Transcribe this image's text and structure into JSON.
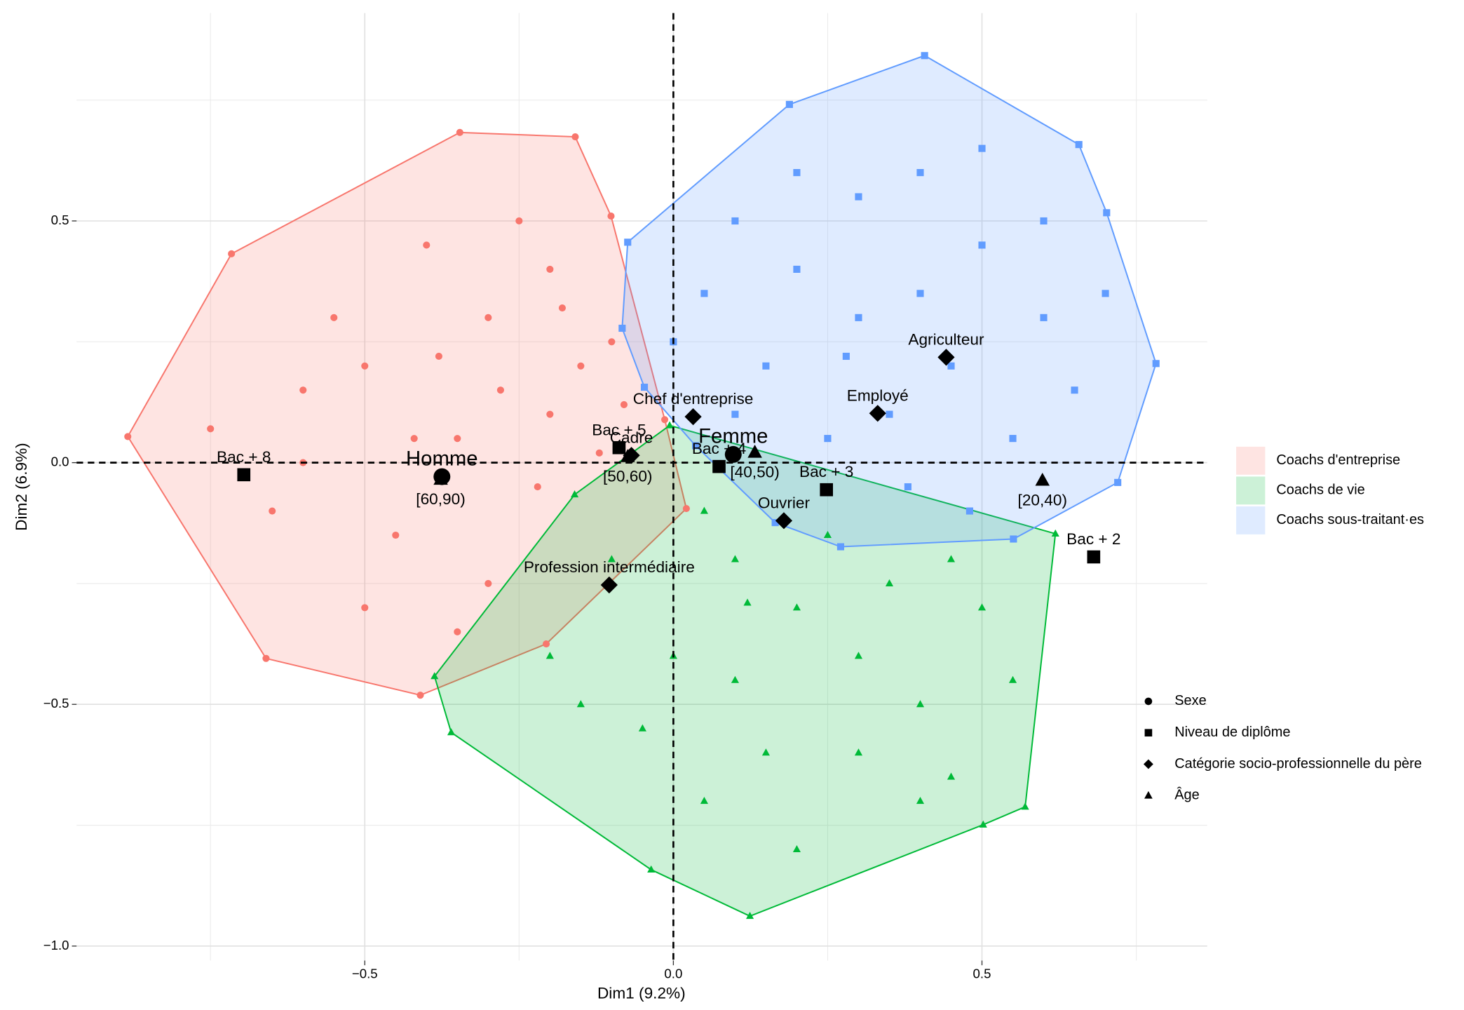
{
  "chart_data": {
    "type": "scatter",
    "xlabel": "Dim1 (9.2%)",
    "ylabel": "Dim2 (6.9%)",
    "xlim": [
      -0.967,
      0.865
    ],
    "ylim": [
      -1.03,
      0.93
    ],
    "xticks": [
      {
        "value": -0.5,
        "label": "−0.5"
      },
      {
        "value": 0,
        "label": "0.0"
      },
      {
        "value": 0.5,
        "label": "0.5"
      }
    ],
    "yticks": [
      {
        "value": -1.0,
        "label": "−1.0"
      },
      {
        "value": -0.5,
        "label": "−0.5"
      },
      {
        "value": 0,
        "label": "0.0"
      },
      {
        "value": 0.5,
        "label": "0.5"
      }
    ],
    "xminor": [
      -0.75,
      -0.25,
      0.25,
      0.75
    ],
    "yminor": [
      -0.75,
      -0.25,
      0.25,
      0.75
    ],
    "grid": true,
    "series": [
      {
        "name": "Coachs d'entreprise",
        "color": "#F8766D",
        "fill": "#FBB4AE",
        "shape": "circle",
        "x": [
          -0.884,
          -0.716,
          -0.346,
          -0.159,
          -0.101,
          -0.014,
          0.021,
          -0.206,
          -0.41,
          -0.66,
          -0.35,
          -0.5,
          -0.3,
          -0.2,
          -0.6,
          -0.45,
          -0.3,
          -0.2,
          -0.4,
          -0.25,
          -0.55,
          -0.65,
          -0.75,
          -0.15,
          -0.1,
          -0.35,
          -0.5,
          -0.28,
          -0.42,
          -0.22,
          -0.12,
          -0.6,
          -0.38,
          -0.18,
          -0.08
        ],
        "y": [
          0.054,
          0.432,
          0.683,
          0.674,
          0.51,
          0.089,
          -0.095,
          -0.375,
          -0.481,
          -0.405,
          0.05,
          0.2,
          0.3,
          0.4,
          0.0,
          -0.15,
          -0.25,
          0.1,
          0.45,
          0.5,
          0.3,
          -0.1,
          0.07,
          0.2,
          0.25,
          -0.35,
          -0.3,
          0.15,
          0.05,
          -0.05,
          0.02,
          0.15,
          0.22,
          0.32,
          0.12
        ]
      },
      {
        "name": "Coachs de vie",
        "color": "#00BA38",
        "fill": "#8FDCA5",
        "shape": "triangle",
        "x": [
          -0.006,
          0.619,
          0.57,
          0.502,
          0.124,
          -0.036,
          -0.36,
          -0.387,
          -0.16,
          0.1,
          0.2,
          0.3,
          0.4,
          0.5,
          0.0,
          -0.1,
          -0.2,
          0.15,
          0.3,
          0.45,
          0.05,
          -0.05,
          0.25,
          0.55,
          0.35,
          -0.15,
          0.1,
          0.2,
          0.4,
          0.12,
          0.05,
          0.45
        ],
        "y": [
          0.077,
          -0.147,
          -0.712,
          -0.749,
          -0.938,
          -0.842,
          -0.558,
          -0.442,
          -0.066,
          -0.2,
          -0.3,
          -0.4,
          -0.5,
          -0.3,
          -0.4,
          -0.2,
          -0.4,
          -0.6,
          -0.6,
          -0.65,
          -0.7,
          -0.55,
          -0.15,
          -0.45,
          -0.25,
          -0.5,
          -0.45,
          -0.8,
          -0.7,
          -0.29,
          -0.1,
          -0.2
        ]
      },
      {
        "name": "Coachs sous-traitant·es",
        "color": "#619CFF",
        "fill": "#B3CFFF",
        "shape": "square",
        "x": [
          -0.074,
          0.188,
          0.407,
          0.657,
          0.702,
          0.782,
          0.72,
          0.551,
          0.271,
          0.165,
          0.036,
          -0.047,
          -0.083,
          0.1,
          0.2,
          0.3,
          0.4,
          0.5,
          0.6,
          0.45,
          0.35,
          0.25,
          0.15,
          0.05,
          0.55,
          0.65,
          0.3,
          0.5,
          0.2,
          0.4,
          0.1,
          0.6,
          0.7,
          0.0,
          0.28,
          0.38,
          0.48
        ],
        "y": [
          0.456,
          0.741,
          0.842,
          0.658,
          0.517,
          0.205,
          -0.041,
          -0.158,
          -0.174,
          -0.124,
          0.035,
          0.156,
          0.278,
          0.5,
          0.4,
          0.3,
          0.6,
          0.45,
          0.3,
          0.2,
          0.1,
          0.05,
          0.2,
          0.35,
          0.05,
          0.15,
          0.55,
          0.65,
          0.6,
          0.35,
          0.1,
          0.5,
          0.35,
          0.25,
          0.22,
          -0.05,
          -0.1
        ]
      }
    ],
    "variables": [
      {
        "name": "Sexe",
        "shape": "circle",
        "labels": [
          "Homme",
          "Femme"
        ],
        "x": [
          -0.375,
          0.097
        ],
        "y": [
          -0.029,
          0.017
        ]
      },
      {
        "name": "Niveau de diplôme",
        "shape": "square",
        "labels": [
          "Bac + 8",
          "Bac + 5",
          "Bac + 4",
          "Bac + 3",
          "Bac + 2"
        ],
        "x": [
          -0.696,
          -0.088,
          0.074,
          0.248,
          0.681
        ],
        "y": [
          -0.025,
          0.031,
          -0.008,
          -0.056,
          -0.195
        ]
      },
      {
        "name": "Catégorie socio-professionnelle du père",
        "shape": "diamond",
        "labels": [
          "Chef d'entreprise",
          "Cadre",
          "Agriculteur",
          "Employé",
          "Ouvrier",
          "Profession intermédiaire"
        ],
        "x": [
          0.032,
          -0.068,
          0.442,
          0.331,
          0.179,
          -0.104
        ],
        "y": [
          0.095,
          0.015,
          0.218,
          0.102,
          -0.12,
          -0.253
        ]
      },
      {
        "name": "Âge",
        "shape": "triangle",
        "labels": [
          "[60,90)",
          "[50,60)",
          "[40,50)",
          "[20,40)"
        ],
        "x": [
          -0.377,
          -0.074,
          0.132,
          0.598
        ],
        "y": [
          -0.035,
          0.012,
          0.021,
          -0.037
        ]
      }
    ]
  }
}
